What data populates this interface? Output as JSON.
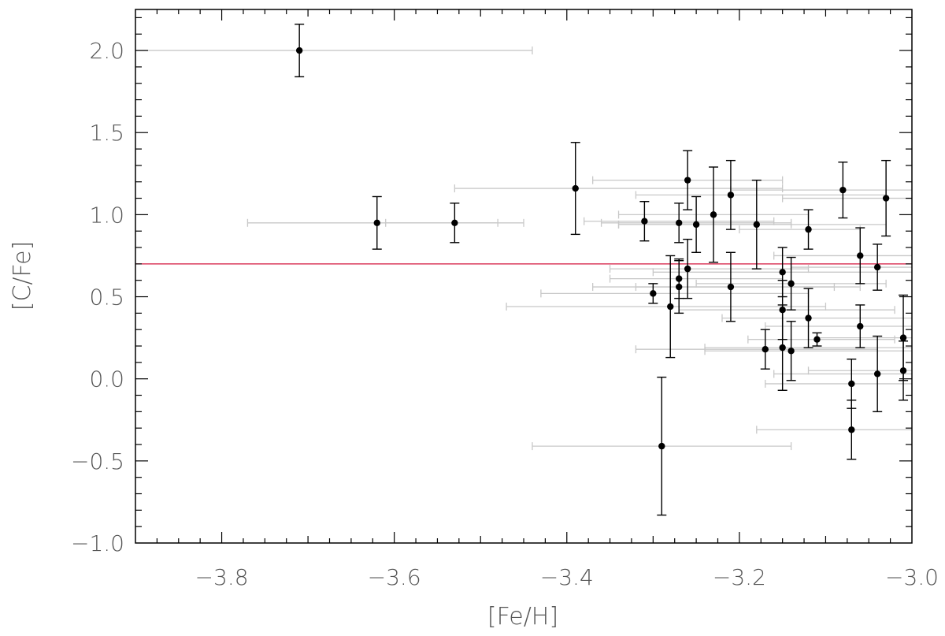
{
  "chart_data": {
    "type": "scatter",
    "title": "",
    "xlabel": "[Fe/H]",
    "ylabel": "[C/Fe]",
    "xlim": [
      -3.9,
      -3.0
    ],
    "ylim": [
      -1.0,
      2.25
    ],
    "grid": false,
    "x_ticks": [
      -3.8,
      -3.6,
      -3.4,
      -3.2,
      -3.0
    ],
    "x_tick_labels": [
      "−3.8",
      "−3.6",
      "−3.4",
      "−3.2",
      "−3.0"
    ],
    "y_ticks": [
      2.0,
      1.5,
      1.0,
      0.5,
      0.0,
      -0.5,
      -1.0
    ],
    "y_tick_labels": [
      "2.0",
      "1.5",
      "1.0",
      "0.5",
      "0.0",
      "−0.5",
      "−1.0"
    ],
    "reference_line": {
      "y": 0.7,
      "color": "#d4143c"
    },
    "colors": {
      "point": "#000000",
      "y_error": "#000000",
      "x_error": "#c8c8c8",
      "axes": "#000000"
    },
    "points": [
      {
        "x": -3.71,
        "y": 2.0,
        "yerr": 0.16,
        "xlo": -3.9,
        "xhi": -3.44
      },
      {
        "x": -3.62,
        "y": 0.95,
        "yerr": 0.16,
        "xlo": -3.77,
        "xhi": -3.48
      },
      {
        "x": -3.53,
        "y": 0.95,
        "yerr": 0.12,
        "xlo": -3.61,
        "xhi": -3.45
      },
      {
        "x": -3.39,
        "y": 1.16,
        "yerr": 0.28,
        "xlo": -3.53,
        "xhi": -3.15
      },
      {
        "x": -3.31,
        "y": 0.96,
        "yerr": 0.12,
        "xlo": -3.38,
        "xhi": -3.16
      },
      {
        "x": -3.3,
        "y": 0.52,
        "yerr": 0.06,
        "xlo": -3.43,
        "xhi": -3.12
      },
      {
        "x": -3.29,
        "y": -0.41,
        "yerr": 0.42,
        "xlo": -3.44,
        "xhi": -3.14
      },
      {
        "x": -3.28,
        "y": 0.44,
        "yerr": 0.31,
        "xlo": -3.47,
        "xhi": -3.1
      },
      {
        "x": -3.27,
        "y": 0.95,
        "yerr": 0.12,
        "xlo": -3.36,
        "xhi": -3.14
      },
      {
        "x": -3.27,
        "y": 0.61,
        "yerr": 0.12,
        "xlo": -3.35,
        "xhi": -3.15
      },
      {
        "x": -3.27,
        "y": 0.56,
        "yerr": 0.16,
        "xlo": -3.37,
        "xhi": -3.09
      },
      {
        "x": -3.26,
        "y": 1.21,
        "yerr": 0.18,
        "xlo": -3.37,
        "xhi": -3.15
      },
      {
        "x": -3.26,
        "y": 0.67,
        "yerr": 0.18,
        "xlo": -3.35,
        "xhi": -3.12
      },
      {
        "x": -3.25,
        "y": 0.94,
        "yerr": 0.17,
        "xlo": -3.34,
        "xhi": -3.14
      },
      {
        "x": -3.23,
        "y": 1.0,
        "yerr": 0.29,
        "xlo": -3.34,
        "xhi": -3.12
      },
      {
        "x": -3.21,
        "y": 1.12,
        "yerr": 0.21,
        "xlo": -3.32,
        "xhi": -3.03
      },
      {
        "x": -3.21,
        "y": 0.56,
        "yerr": 0.21,
        "xlo": -3.32,
        "xhi": -3.06
      },
      {
        "x": -3.18,
        "y": 0.94,
        "yerr": 0.27,
        "xlo": -3.34,
        "xhi": -3.03
      },
      {
        "x": -3.17,
        "y": 0.18,
        "yerr": 0.12,
        "xlo": -3.32,
        "xhi": -3.04
      },
      {
        "x": -3.15,
        "y": 0.65,
        "yerr": 0.15,
        "xlo": -3.3,
        "xhi": -3.0
      },
      {
        "x": -3.15,
        "y": 0.42,
        "yerr": 0.18,
        "xlo": -3.27,
        "xhi": -3.02
      },
      {
        "x": -3.15,
        "y": 0.19,
        "yerr": 0.26,
        "xlo": -3.24,
        "xhi": -3.0
      },
      {
        "x": -3.14,
        "y": 0.58,
        "yerr": 0.16,
        "xlo": -3.25,
        "xhi": -3.03
      },
      {
        "x": -3.14,
        "y": 0.17,
        "yerr": 0.18,
        "xlo": -3.24,
        "xhi": -3.0
      },
      {
        "x": -3.12,
        "y": 0.91,
        "yerr": 0.12,
        "xlo": -3.2,
        "xhi": -3.06
      },
      {
        "x": -3.12,
        "y": 0.37,
        "yerr": 0.18,
        "xlo": -3.22,
        "xhi": -3.0
      },
      {
        "x": -3.11,
        "y": 0.24,
        "yerr": 0.04,
        "xlo": -3.19,
        "xhi": -3.02
      },
      {
        "x": -3.08,
        "y": 1.15,
        "yerr": 0.17,
        "xlo": -3.21,
        "xhi": -3.0
      },
      {
        "x": -3.07,
        "y": -0.03,
        "yerr": 0.15,
        "xlo": -3.17,
        "xhi": -3.0
      },
      {
        "x": -3.07,
        "y": -0.31,
        "yerr": 0.18,
        "xlo": -3.18,
        "xhi": -3.0
      },
      {
        "x": -3.06,
        "y": 0.75,
        "yerr": 0.17,
        "xlo": -3.16,
        "xhi": -3.0
      },
      {
        "x": -3.06,
        "y": 0.32,
        "yerr": 0.13,
        "xlo": -3.17,
        "xhi": -3.0
      },
      {
        "x": -3.04,
        "y": 0.68,
        "yerr": 0.14,
        "xlo": -3.14,
        "xhi": -3.0
      },
      {
        "x": -3.04,
        "y": 0.03,
        "yerr": 0.23,
        "xlo": -3.16,
        "xhi": -3.0
      },
      {
        "x": -3.03,
        "y": 1.1,
        "yerr": 0.23,
        "xlo": -3.15,
        "xhi": -3.0
      },
      {
        "x": -3.01,
        "y": 0.25,
        "yerr": 0.26,
        "xlo": -3.11,
        "xhi": -3.0
      },
      {
        "x": -3.01,
        "y": 0.05,
        "yerr": 0.18,
        "xlo": -3.12,
        "xhi": -3.0
      }
    ]
  }
}
